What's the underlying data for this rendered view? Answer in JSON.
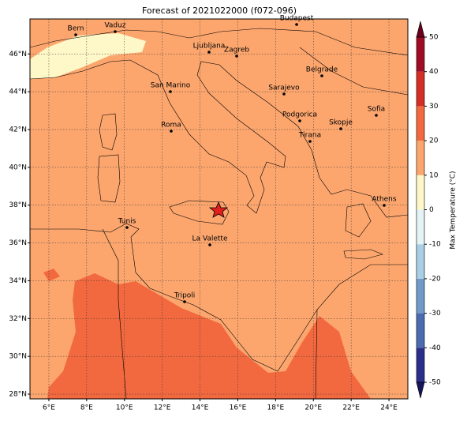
{
  "chart_data": {
    "type": "map",
    "title": "Forecast of 2021022000 (f072-096)",
    "xlim": [
      5,
      25
    ],
    "ylim": [
      27.75,
      47.85
    ],
    "xticks": [
      {
        "value": 6,
        "label": "6°E"
      },
      {
        "value": 8,
        "label": "8°E"
      },
      {
        "value": 10,
        "label": "10°E"
      },
      {
        "value": 12,
        "label": "12°E"
      },
      {
        "value": 14,
        "label": "14°E"
      },
      {
        "value": 16,
        "label": "16°E"
      },
      {
        "value": 18,
        "label": "18°E"
      },
      {
        "value": 20,
        "label": "20°E"
      },
      {
        "value": 22,
        "label": "22°E"
      },
      {
        "value": 24,
        "label": "24°E"
      }
    ],
    "yticks": [
      {
        "value": 28,
        "label": "28°N"
      },
      {
        "value": 30,
        "label": "30°N"
      },
      {
        "value": 32,
        "label": "32°N"
      },
      {
        "value": 34,
        "label": "34°N"
      },
      {
        "value": 36,
        "label": "36°N"
      },
      {
        "value": 38,
        "label": "38°N"
      },
      {
        "value": 40,
        "label": "40°N"
      },
      {
        "value": 42,
        "label": "42°N"
      },
      {
        "value": 44,
        "label": "44°N"
      },
      {
        "value": 46,
        "label": "46°N"
      }
    ],
    "grid": true,
    "cities": [
      "Bern",
      "Vaduz",
      "Budapest",
      "Ljubljana",
      "Zagreb",
      "San Marino",
      "Sarajevo",
      "Belgrade",
      "Roma",
      "Podgorica",
      "Skopje",
      "Sofia",
      "Tirana",
      "Athens",
      "Tunis",
      "La Valette",
      "Tripoli"
    ],
    "colorbar": {
      "label": "Max Temperature (°C)",
      "lim": [
        -50,
        50
      ],
      "ticks": [
        -50,
        -40,
        -30,
        -20,
        -10,
        0,
        10,
        20,
        30,
        40,
        50
      ],
      "colors": [
        "#2b2f8a",
        "#4a6bb0",
        "#6f9ac9",
        "#a8cfe4",
        "#e3f3f6",
        "#fef8c8",
        "#fca66e",
        "#f3693f",
        "#d42e26",
        "#a00c24"
      ],
      "extend_colors": [
        "#17155c",
        "#6b001c"
      ]
    }
  }
}
